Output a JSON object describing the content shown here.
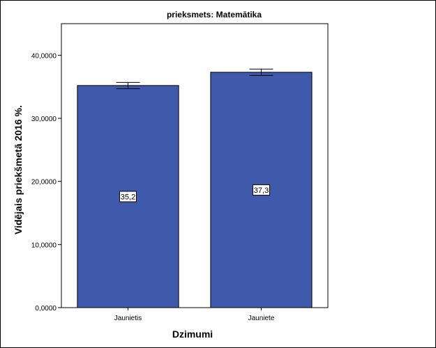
{
  "chart_data": {
    "type": "bar",
    "title": "prieksmets: Matemātika",
    "xlabel": "Dzimumi",
    "ylabel": "Vidējais priekšmetā 2016 %.",
    "categories": [
      "Jaunietis",
      "Jauniete"
    ],
    "values": [
      35.2,
      37.3
    ],
    "data_labels": [
      "35,2",
      "37,3"
    ],
    "error_bars": [
      {
        "low": 34.7,
        "high": 35.7
      },
      {
        "low": 36.8,
        "high": 37.8
      }
    ],
    "ylim": [
      0,
      45
    ],
    "yticks": [
      0,
      10,
      20,
      30,
      40
    ],
    "ytick_labels": [
      "0,0000",
      "10,0000",
      "20,0000",
      "30,0000",
      "40,0000"
    ],
    "bar_color": "#3f59ab",
    "grid": false
  }
}
